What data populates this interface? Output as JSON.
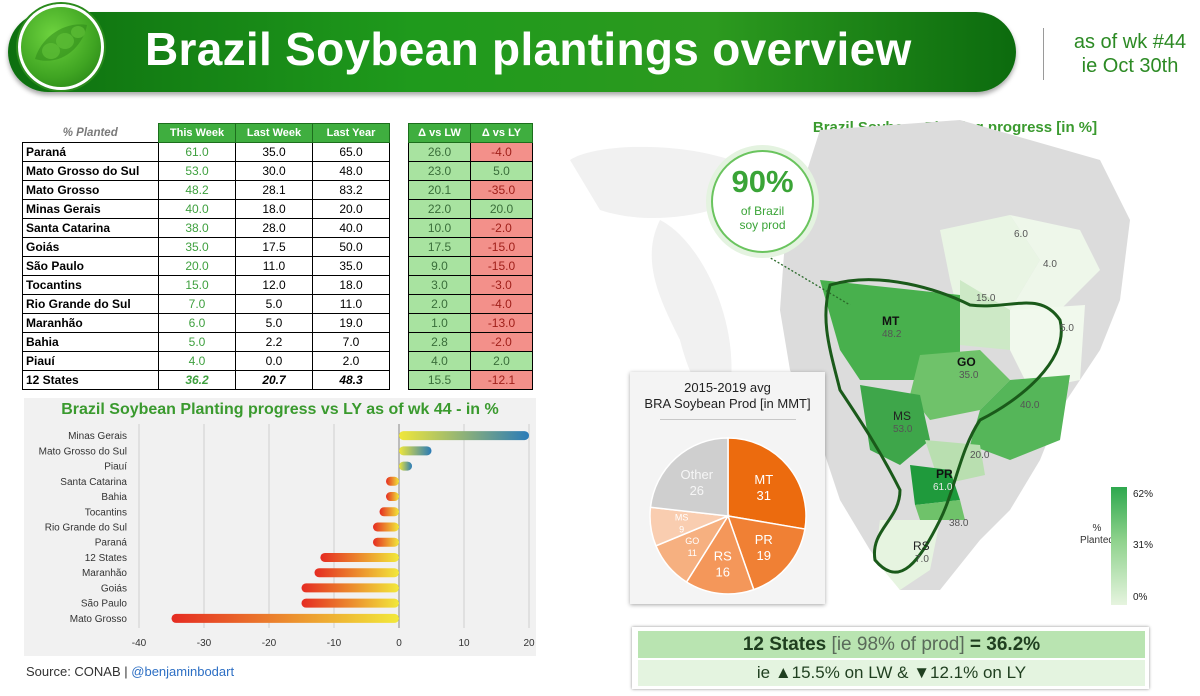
{
  "header": {
    "title": "Brazil Soybean plantings overview",
    "as_of_line1": "as of wk #44",
    "as_of_line2": "ie Oct 30th"
  },
  "table": {
    "pct_label": "% Planted",
    "col_this_week": "This Week",
    "col_last_week": "Last Week",
    "col_last_year": "Last Year",
    "col_delta_lw": "Δ vs LW",
    "col_delta_ly": "Δ vs LY",
    "rows": [
      {
        "state": "Paraná",
        "tw": "61.0",
        "lw": "35.0",
        "ly": "65.0",
        "dlw": "26.0",
        "dly": "-4.0"
      },
      {
        "state": "Mato Grosso do Sul",
        "tw": "53.0",
        "lw": "30.0",
        "ly": "48.0",
        "dlw": "23.0",
        "dly": "5.0"
      },
      {
        "state": "Mato Grosso",
        "tw": "48.2",
        "lw": "28.1",
        "ly": "83.2",
        "dlw": "20.1",
        "dly": "-35.0"
      },
      {
        "state": "Minas Gerais",
        "tw": "40.0",
        "lw": "18.0",
        "ly": "20.0",
        "dlw": "22.0",
        "dly": "20.0"
      },
      {
        "state": "Santa Catarina",
        "tw": "38.0",
        "lw": "28.0",
        "ly": "40.0",
        "dlw": "10.0",
        "dly": "-2.0"
      },
      {
        "state": "Goiás",
        "tw": "35.0",
        "lw": "17.5",
        "ly": "50.0",
        "dlw": "17.5",
        "dly": "-15.0"
      },
      {
        "state": "São Paulo",
        "tw": "20.0",
        "lw": "11.0",
        "ly": "35.0",
        "dlw": "9.0",
        "dly": "-15.0"
      },
      {
        "state": "Tocantins",
        "tw": "15.0",
        "lw": "12.0",
        "ly": "18.0",
        "dlw": "3.0",
        "dly": "-3.0"
      },
      {
        "state": "Rio Grande do Sul",
        "tw": "7.0",
        "lw": "5.0",
        "ly": "11.0",
        "dlw": "2.0",
        "dly": "-4.0"
      },
      {
        "state": "Maranhão",
        "tw": "6.0",
        "lw": "5.0",
        "ly": "19.0",
        "dlw": "1.0",
        "dly": "-13.0"
      },
      {
        "state": "Bahia",
        "tw": "5.0",
        "lw": "2.2",
        "ly": "7.0",
        "dlw": "2.8",
        "dly": "-2.0"
      },
      {
        "state": "Piauí",
        "tw": "4.0",
        "lw": "0.0",
        "ly": "2.0",
        "dlw": "4.0",
        "dly": "2.0"
      },
      {
        "state": "12 States",
        "tw": "36.2",
        "lw": "20.7",
        "ly": "48.3",
        "dlw": "15.5",
        "dly": "-12.1"
      }
    ]
  },
  "chart_data": [
    {
      "type": "bar",
      "orientation": "horizontal",
      "title": "Brazil Soybean Planting progress vs LY as of wk 44 - in %",
      "categories": [
        "Minas Gerais",
        "Mato Grosso do Sul",
        "Piauí",
        "Santa Catarina",
        "Bahia",
        "Tocantins",
        "Rio Grande do Sul",
        "Paraná",
        "12 States",
        "Maranhão",
        "Goiás",
        "São Paulo",
        "Mato Grosso"
      ],
      "values": [
        20,
        5,
        2,
        -2,
        -2,
        -3,
        -4,
        -4,
        -12.1,
        -13,
        -15,
        -15,
        -35
      ],
      "xlim": [
        -40,
        20
      ],
      "xticks": [
        "-40",
        "-30",
        "-20",
        "-10",
        "0",
        "10",
        "20"
      ],
      "grid": true,
      "colors": {
        "negative_start": "#e52b22",
        "negative_end": "#f2e93a",
        "positive_start": "#f0e73a",
        "positive_end": "#2a7bb8"
      }
    },
    {
      "type": "pie",
      "title_line1": "2015-2019 avg",
      "title_line2": "BRA Soybean Prod [in MMT]",
      "slices": [
        {
          "label": "MT",
          "value": 31,
          "color": "#ec6b0e"
        },
        {
          "label": "PR",
          "value": 19,
          "color": "#f08034"
        },
        {
          "label": "RS",
          "value": 16,
          "color": "#f4975a"
        },
        {
          "label": "GO",
          "value": 11,
          "color": "#f6b080"
        },
        {
          "label": "MS",
          "value": 9,
          "color": "#f9cdb0"
        },
        {
          "label": "Other",
          "value": 26,
          "color": "#cfcfcf"
        }
      ]
    }
  ],
  "map": {
    "title": "Brazil Soybean Planting progress [in %]",
    "share_pct": "90%",
    "share_line1": "of Brazil",
    "share_line2": "soy prod",
    "labels": [
      {
        "code": "MT",
        "value": "48.2"
      },
      {
        "code": "GO",
        "value": "35.0"
      },
      {
        "code": "MS",
        "value": "53.0"
      },
      {
        "code": "PR",
        "value": "61.0"
      },
      {
        "code": "RS",
        "value": "7.0"
      }
    ],
    "other_values": [
      "6.0",
      "4.0",
      "15.0",
      "5.0",
      "40.0",
      "20.0",
      "38.0"
    ],
    "legend_title_line1": "%",
    "legend_title_line2": "Planted",
    "legend_max": "62%",
    "legend_mid": "31%",
    "legend_min": "0%"
  },
  "summary": {
    "line1_states": "12 States",
    "line1_note": "[ie 98% of prod]",
    "line1_result": "= 36.2%",
    "line2": "ie ▲15.5% on LW & ▼12.1% on LY"
  },
  "source": {
    "text": "Source: CONAB |",
    "handle": "@benjaminbodart"
  }
}
